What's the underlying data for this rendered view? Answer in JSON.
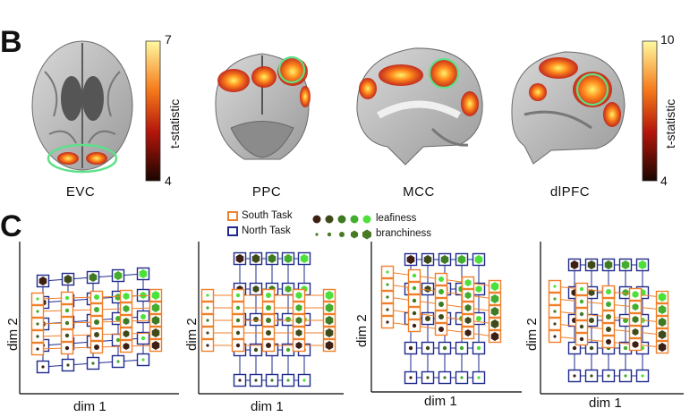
{
  "figure": {
    "panel_b_letter": "B",
    "panel_c_letter": "C",
    "regions": [
      {
        "id": "evc",
        "label": "EVC"
      },
      {
        "id": "ppc",
        "label": "PPC"
      },
      {
        "id": "mcc",
        "label": "MCC"
      },
      {
        "id": "dlpfc",
        "label": "dlPFC"
      }
    ],
    "colorbar_left": {
      "max": "7",
      "min": "4",
      "title": "t-statistic"
    },
    "colorbar_right": {
      "max": "10",
      "min": "4",
      "title": "t-statistic"
    },
    "legend": {
      "south": "South Task",
      "north": "North Task",
      "leafiness": "leafiness",
      "branchiness": "branchiness"
    },
    "axes": {
      "x": "dim 1",
      "y": "dim 2"
    },
    "colors": {
      "south": "#f07f2a",
      "north": "#1f2a8c",
      "leaf_low": "#3d1f14",
      "leaf_high": "#4be03a",
      "highlight": "#5ee08a"
    }
  },
  "chart_data": [
    {
      "type": "scatter",
      "panel": "EVC",
      "description_axes": {
        "xlabel": "dim 1",
        "ylabel": "dim 2"
      },
      "grid": {
        "leafiness_levels": 5,
        "branchiness_levels": 5
      },
      "tasks": [
        "South Task",
        "North Task"
      ]
    },
    {
      "type": "scatter",
      "panel": "PPC",
      "description_axes": {
        "xlabel": "dim 1",
        "ylabel": "dim 2"
      },
      "grid": {
        "leafiness_levels": 5,
        "branchiness_levels": 5
      },
      "tasks": [
        "South Task",
        "North Task"
      ]
    },
    {
      "type": "scatter",
      "panel": "MCC",
      "description_axes": {
        "xlabel": "dim 1",
        "ylabel": "dim 2"
      },
      "grid": {
        "leafiness_levels": 5,
        "branchiness_levels": 5
      },
      "tasks": [
        "South Task",
        "North Task"
      ]
    },
    {
      "type": "scatter",
      "panel": "dlPFC",
      "description_axes": {
        "xlabel": "dim 1",
        "ylabel": "dim 2"
      },
      "grid": {
        "leafiness_levels": 5,
        "branchiness_levels": 5
      },
      "tasks": [
        "South Task",
        "North Task"
      ]
    }
  ]
}
